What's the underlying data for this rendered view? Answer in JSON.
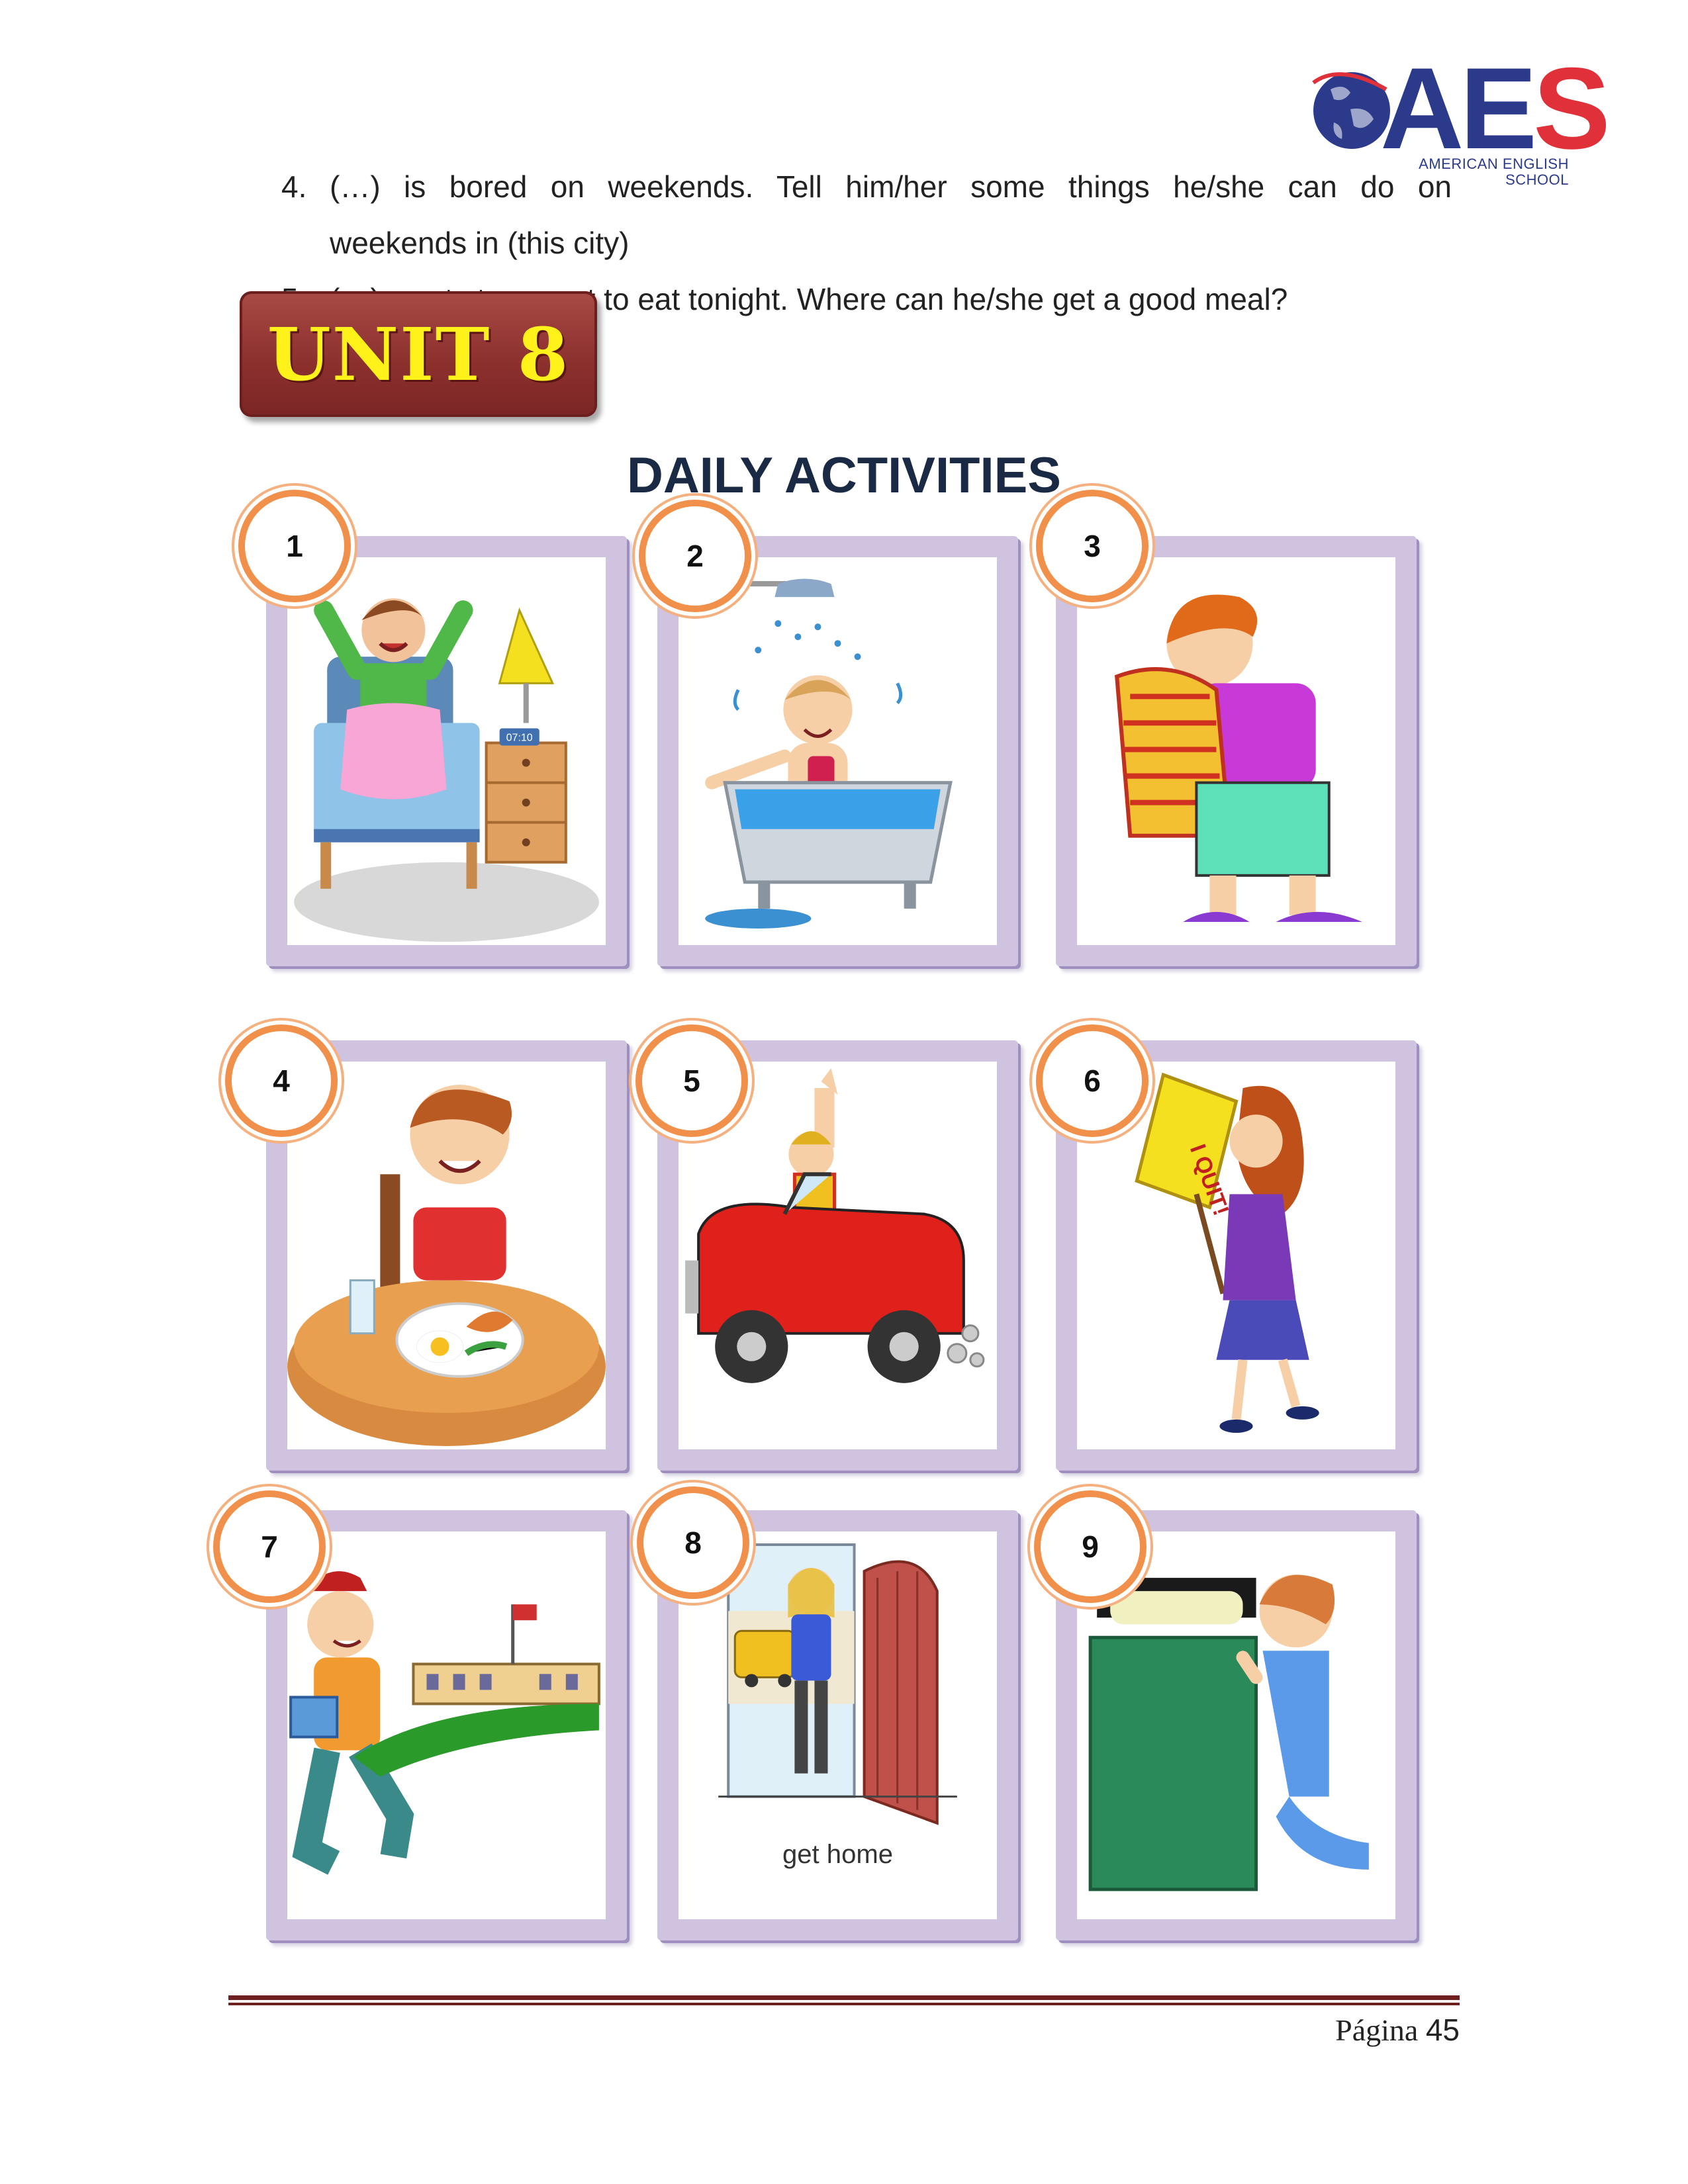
{
  "logo": {
    "word": {
      "a": "A",
      "e": "E",
      "s": "S"
    },
    "line1": "AMERICAN ENGLISH",
    "line2": "SCHOOL"
  },
  "questions": {
    "q4_number": "4.",
    "q4_line1": "(…) is bored on weekends.  Tell him/her some things he/she can do on",
    "q4_line2": "weekends in (this city)",
    "q5_number": "5.",
    "q5_text": "(…) wants to go out to eat tonight.  Where can he/she get a good meal?"
  },
  "unit_banner": "UNIT 8",
  "section_title": "DAILY ACTIVITIES",
  "cards": [
    {
      "number": "1",
      "scene": "wake-up",
      "caption": "",
      "clock": "07:10"
    },
    {
      "number": "2",
      "scene": "take-a-bath",
      "caption": ""
    },
    {
      "number": "3",
      "scene": "get-dressed",
      "caption": ""
    },
    {
      "number": "4",
      "scene": "have-breakfast",
      "caption": ""
    },
    {
      "number": "5",
      "scene": "drive-to-work",
      "caption": ""
    },
    {
      "number": "6",
      "scene": "quit-work",
      "caption": "",
      "sign": "I QUIT!"
    },
    {
      "number": "7",
      "scene": "go-to-school",
      "caption": ""
    },
    {
      "number": "8",
      "scene": "get-home",
      "caption": "get home"
    },
    {
      "number": "9",
      "scene": "pray-bedtime",
      "caption": ""
    }
  ],
  "footer": {
    "page_label": "Página",
    "page_number": "45",
    "rule_color": "#6e1f1f"
  },
  "colors": {
    "badge_ring": "#f0904a",
    "card_frame": "#cfc3e0",
    "banner": "#8b2f2d",
    "banner_text": "#fff21a",
    "title": "#1b2a44"
  }
}
